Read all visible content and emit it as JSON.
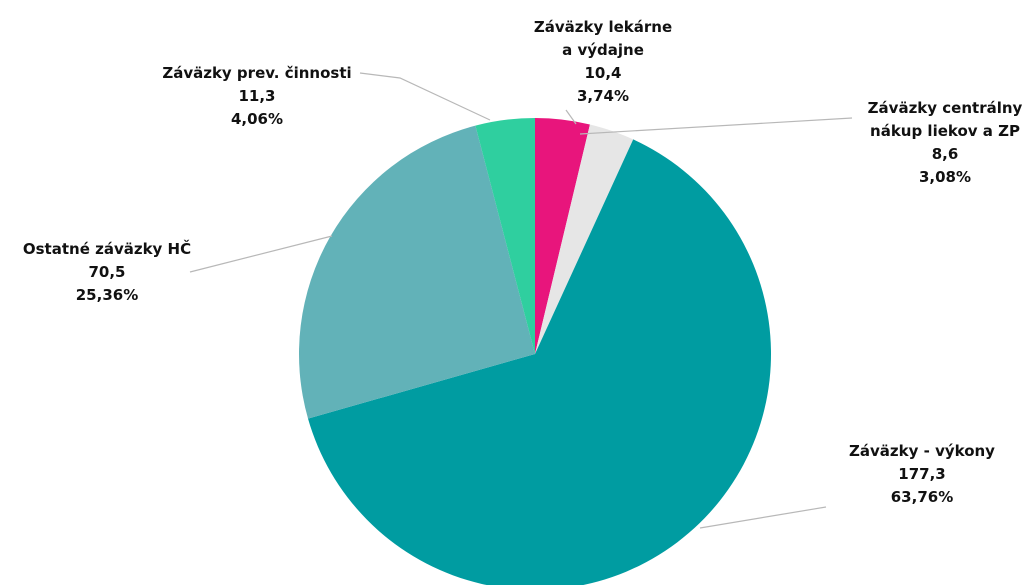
{
  "chart_data": {
    "type": "pie",
    "categories": [
      "Záväzky lekárne a výdajne",
      "Záväzky centrálny nákup liekov a ZP",
      "Záväzky - výkony",
      "Ostatné záväzky HČ",
      "Záväzky prev. činnosti"
    ],
    "values": [
      10.4,
      8.6,
      177.3,
      70.5,
      11.3
    ],
    "value_labels": [
      "10,4",
      "8,6",
      "177,3",
      "70,5",
      "11,3"
    ],
    "percent_labels": [
      "3,74%",
      "3,08%",
      "63,76%",
      "25,36%",
      "4,06%"
    ],
    "colors": [
      "#e8157c",
      "#e6e6e6",
      "#009ca1",
      "#62b2b8",
      "#2fcf9f"
    ]
  }
}
